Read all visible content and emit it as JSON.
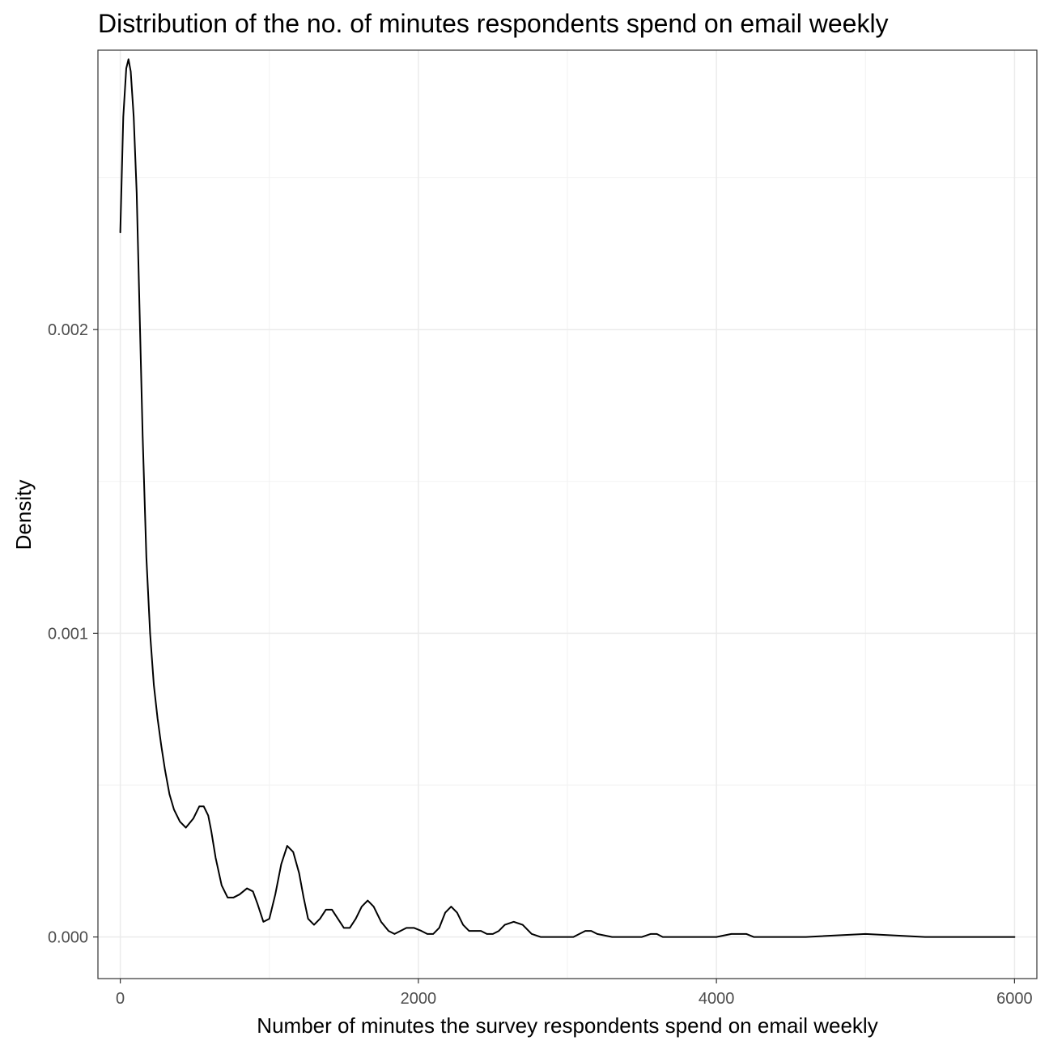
{
  "chart_data": {
    "type": "area",
    "title": "Distribution of the no. of minutes respondents spend on email weekly",
    "xlabel": "Number of minutes the survey respondents spend on email weekly",
    "ylabel": "Density",
    "xlim": [
      -150,
      6150
    ],
    "ylim": [
      -0.000137,
      0.00292
    ],
    "x_ticks": [
      0,
      2000,
      4000,
      6000
    ],
    "x_tick_labels": [
      "0",
      "2000",
      "4000",
      "6000"
    ],
    "y_ticks": [
      0.0,
      0.001,
      0.002
    ],
    "y_tick_labels": [
      "0.000",
      "0.001",
      "0.002"
    ],
    "grid": true,
    "line_color": "#000000",
    "series": [
      {
        "x": [
          0,
          20,
          40,
          55,
          70,
          90,
          110,
          130,
          150,
          175,
          200,
          225,
          250,
          275,
          300,
          330,
          360,
          400,
          440,
          490,
          530,
          560,
          590,
          610,
          640,
          680,
          720,
          760,
          800,
          850,
          890,
          920,
          960,
          1000,
          1040,
          1080,
          1120,
          1160,
          1200,
          1230,
          1260,
          1300,
          1340,
          1380,
          1420,
          1460,
          1500,
          1540,
          1580,
          1620,
          1660,
          1700,
          1750,
          1800,
          1840,
          1880,
          1920,
          1970,
          2020,
          2060,
          2100,
          2140,
          2180,
          2220,
          2260,
          2300,
          2340,
          2380,
          2420,
          2460,
          2500,
          2540,
          2580,
          2640,
          2700,
          2760,
          2820,
          2880,
          2940,
          3000,
          3040,
          3080,
          3120,
          3160,
          3200,
          3300,
          3400,
          3500,
          3560,
          3600,
          3640,
          3680,
          3720,
          3760,
          3800,
          3900,
          4000,
          4100,
          4200,
          4250,
          4300,
          4400,
          4600,
          5000,
          5400,
          5600,
          6000
        ],
        "y": [
          0.00232,
          0.0027,
          0.00286,
          0.00289,
          0.00285,
          0.0027,
          0.00245,
          0.00205,
          0.00165,
          0.00125,
          0.001,
          0.00083,
          0.00072,
          0.00063,
          0.00055,
          0.00047,
          0.00042,
          0.00038,
          0.00036,
          0.00039,
          0.00043,
          0.00043,
          0.0004,
          0.00035,
          0.00026,
          0.00017,
          0.00013,
          0.00013,
          0.00014,
          0.00016,
          0.00015,
          0.00011,
          5e-05,
          6e-05,
          0.00014,
          0.00024,
          0.0003,
          0.00028,
          0.00021,
          0.00013,
          6e-05,
          4e-05,
          6e-05,
          9e-05,
          9e-05,
          6e-05,
          3e-05,
          3e-05,
          6e-05,
          0.0001,
          0.00012,
          0.0001,
          5e-05,
          2e-05,
          1e-05,
          2e-05,
          3e-05,
          3e-05,
          2e-05,
          1e-05,
          1e-05,
          3e-05,
          8e-05,
          0.0001,
          8e-05,
          4e-05,
          2e-05,
          2e-05,
          2e-05,
          1e-05,
          1e-05,
          2e-05,
          4e-05,
          5e-05,
          4e-05,
          1e-05,
          0.0,
          0.0,
          0.0,
          0.0,
          0.0,
          1e-05,
          2e-05,
          2e-05,
          1e-05,
          0.0,
          0.0,
          0.0,
          1e-05,
          1e-05,
          0.0,
          0.0,
          0.0,
          0.0,
          0.0,
          0.0,
          0.0,
          1e-05,
          1e-05,
          0.0,
          0.0,
          0.0,
          0.0,
          1e-05,
          0.0,
          0.0,
          0.0
        ]
      }
    ]
  }
}
